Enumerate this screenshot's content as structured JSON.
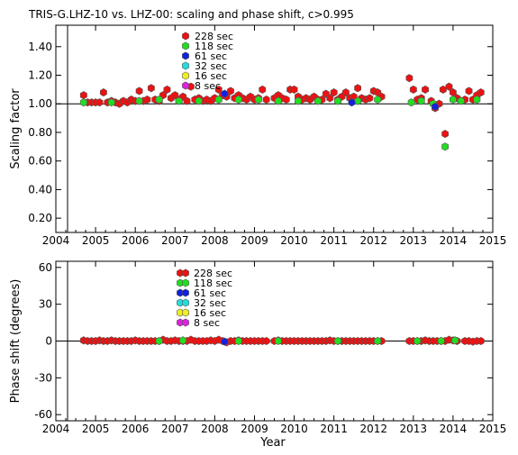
{
  "figure": {
    "title": "TRIS-G.LHZ-10 vs. LHZ-00: scaling and phase shift, c>0.995",
    "xlabel": "Year"
  },
  "legend_items": [
    {
      "label": "228 sec",
      "color": "#ee1111"
    },
    {
      "label": "118 sec",
      "color": "#22dd22"
    },
    {
      "label": "61 sec",
      "color": "#1122dd"
    },
    {
      "label": "32 sec",
      "color": "#22dddd"
    },
    {
      "label": "16 sec",
      "color": "#eeee22"
    },
    {
      "label": "8 sec",
      "color": "#dd22dd"
    }
  ],
  "chart_data": [
    {
      "type": "scatter",
      "ylabel": "Scaling factor",
      "xlim": [
        2004,
        2015
      ],
      "ylim": [
        0.1,
        1.55
      ],
      "xticks": [
        "2004",
        "2005",
        "2006",
        "2007",
        "2008",
        "2009",
        "2010",
        "2011",
        "2012",
        "2013",
        "2014",
        "2015"
      ],
      "yticks": [
        "0.20",
        "0.40",
        "0.60",
        "0.80",
        "1.00",
        "1.20",
        "1.40"
      ],
      "reference_line": 1.0,
      "legend_position": "top-center",
      "series": [
        {
          "name": "228 sec",
          "color": "#ee1111",
          "points": [
            [
              2004.7,
              1.06
            ],
            [
              2004.8,
              1.01
            ],
            [
              2004.9,
              1.01
            ],
            [
              2005.0,
              1.01
            ],
            [
              2005.1,
              1.01
            ],
            [
              2005.2,
              1.08
            ],
            [
              2005.3,
              1.01
            ],
            [
              2005.4,
              1.02
            ],
            [
              2005.5,
              1.01
            ],
            [
              2005.6,
              1.0
            ],
            [
              2005.7,
              1.02
            ],
            [
              2005.8,
              1.01
            ],
            [
              2005.9,
              1.03
            ],
            [
              2006.0,
              1.02
            ],
            [
              2006.1,
              1.09
            ],
            [
              2006.2,
              1.02
            ],
            [
              2006.3,
              1.03
            ],
            [
              2006.4,
              1.11
            ],
            [
              2006.5,
              1.03
            ],
            [
              2006.6,
              1.02
            ],
            [
              2006.7,
              1.06
            ],
            [
              2006.8,
              1.1
            ],
            [
              2006.9,
              1.04
            ],
            [
              2007.0,
              1.06
            ],
            [
              2007.1,
              1.03
            ],
            [
              2007.2,
              1.05
            ],
            [
              2007.3,
              1.02
            ],
            [
              2007.4,
              1.12
            ],
            [
              2007.5,
              1.03
            ],
            [
              2007.6,
              1.04
            ],
            [
              2007.7,
              1.02
            ],
            [
              2007.8,
              1.03
            ],
            [
              2007.9,
              1.02
            ],
            [
              2008.0,
              1.04
            ],
            [
              2008.1,
              1.1
            ],
            [
              2008.2,
              1.06
            ],
            [
              2008.3,
              1.05
            ],
            [
              2008.4,
              1.09
            ],
            [
              2008.5,
              1.04
            ],
            [
              2008.6,
              1.06
            ],
            [
              2008.7,
              1.04
            ],
            [
              2008.8,
              1.03
            ],
            [
              2008.9,
              1.05
            ],
            [
              2009.0,
              1.03
            ],
            [
              2009.1,
              1.04
            ],
            [
              2009.2,
              1.1
            ],
            [
              2009.3,
              1.03
            ],
            [
              2009.5,
              1.04
            ],
            [
              2009.6,
              1.06
            ],
            [
              2009.7,
              1.04
            ],
            [
              2009.8,
              1.03
            ],
            [
              2009.9,
              1.1
            ],
            [
              2010.0,
              1.1
            ],
            [
              2010.1,
              1.05
            ],
            [
              2010.2,
              1.03
            ],
            [
              2010.3,
              1.04
            ],
            [
              2010.4,
              1.03
            ],
            [
              2010.5,
              1.05
            ],
            [
              2010.6,
              1.03
            ],
            [
              2010.7,
              1.03
            ],
            [
              2010.8,
              1.07
            ],
            [
              2010.9,
              1.04
            ],
            [
              2011.0,
              1.08
            ],
            [
              2011.1,
              1.03
            ],
            [
              2011.2,
              1.05
            ],
            [
              2011.3,
              1.08
            ],
            [
              2011.4,
              1.04
            ],
            [
              2011.5,
              1.05
            ],
            [
              2011.6,
              1.11
            ],
            [
              2011.7,
              1.04
            ],
            [
              2011.8,
              1.03
            ],
            [
              2011.9,
              1.04
            ],
            [
              2012.0,
              1.09
            ],
            [
              2012.1,
              1.08
            ],
            [
              2012.2,
              1.05
            ],
            [
              2012.9,
              1.18
            ],
            [
              2013.0,
              1.1
            ],
            [
              2013.1,
              1.03
            ],
            [
              2013.2,
              1.04
            ],
            [
              2013.3,
              1.1
            ],
            [
              2013.45,
              1.02
            ],
            [
              2013.55,
              0.97
            ],
            [
              2013.65,
              1.0
            ],
            [
              2013.75,
              1.1
            ],
            [
              2013.9,
              1.12
            ],
            [
              2014.0,
              1.08
            ],
            [
              2014.1,
              1.04
            ],
            [
              2014.3,
              1.03
            ],
            [
              2014.4,
              1.09
            ],
            [
              2014.5,
              1.03
            ],
            [
              2014.6,
              1.06
            ],
            [
              2014.7,
              1.08
            ],
            [
              2013.8,
              0.79
            ]
          ]
        },
        {
          "name": "118 sec",
          "color": "#22dd22",
          "points": [
            [
              2004.7,
              1.01
            ],
            [
              2005.4,
              1.01
            ],
            [
              2006.1,
              1.02
            ],
            [
              2006.6,
              1.03
            ],
            [
              2007.1,
              1.02
            ],
            [
              2007.6,
              1.02
            ],
            [
              2008.1,
              1.03
            ],
            [
              2008.6,
              1.03
            ],
            [
              2009.1,
              1.03
            ],
            [
              2009.6,
              1.02
            ],
            [
              2010.1,
              1.02
            ],
            [
              2010.6,
              1.02
            ],
            [
              2011.1,
              1.02
            ],
            [
              2011.6,
              1.02
            ],
            [
              2012.1,
              1.03
            ],
            [
              2012.95,
              1.01
            ],
            [
              2013.2,
              1.02
            ],
            [
              2013.5,
              1.0
            ],
            [
              2013.8,
              0.7
            ],
            [
              2014.0,
              1.03
            ],
            [
              2014.2,
              1.02
            ],
            [
              2014.6,
              1.03
            ]
          ]
        },
        {
          "name": "61 sec",
          "color": "#1122dd",
          "points": [
            [
              2008.25,
              1.07
            ],
            [
              2011.45,
              1.01
            ],
            [
              2013.55,
              0.98
            ]
          ]
        }
      ]
    },
    {
      "type": "scatter",
      "ylabel": "Phase shift (degrees)",
      "xlim": [
        2004,
        2015
      ],
      "ylim": [
        -65,
        65
      ],
      "xticks": [
        "2004",
        "2005",
        "2006",
        "2007",
        "2008",
        "2009",
        "2010",
        "2011",
        "2012",
        "2013",
        "2014",
        "2015"
      ],
      "yticks": [
        "-60",
        "-30",
        "0",
        "30",
        "60"
      ],
      "reference_line": 0,
      "legend_position": "top-center",
      "series": [
        {
          "name": "228 sec",
          "color": "#ee1111",
          "points": [
            [
              2004.7,
              0.5
            ],
            [
              2004.8,
              0
            ],
            [
              2004.9,
              0
            ],
            [
              2005.0,
              0
            ],
            [
              2005.1,
              0.5
            ],
            [
              2005.2,
              0
            ],
            [
              2005.3,
              0
            ],
            [
              2005.4,
              0.5
            ],
            [
              2005.5,
              0
            ],
            [
              2005.6,
              0
            ],
            [
              2005.7,
              0
            ],
            [
              2005.8,
              0
            ],
            [
              2005.9,
              0
            ],
            [
              2006.0,
              0.5
            ],
            [
              2006.1,
              0
            ],
            [
              2006.2,
              0
            ],
            [
              2006.3,
              0
            ],
            [
              2006.4,
              0
            ],
            [
              2006.5,
              0
            ],
            [
              2006.6,
              0
            ],
            [
              2006.7,
              1
            ],
            [
              2006.8,
              0
            ],
            [
              2006.9,
              0
            ],
            [
              2007.0,
              0.5
            ],
            [
              2007.1,
              0
            ],
            [
              2007.2,
              0
            ],
            [
              2007.3,
              0
            ],
            [
              2007.4,
              1
            ],
            [
              2007.5,
              0
            ],
            [
              2007.6,
              0
            ],
            [
              2007.7,
              0
            ],
            [
              2007.8,
              0
            ],
            [
              2007.9,
              0.5
            ],
            [
              2008.0,
              0
            ],
            [
              2008.1,
              1
            ],
            [
              2008.2,
              0
            ],
            [
              2008.3,
              -1
            ],
            [
              2008.4,
              0
            ],
            [
              2008.5,
              0
            ],
            [
              2008.6,
              0.5
            ],
            [
              2008.7,
              0
            ],
            [
              2008.8,
              0
            ],
            [
              2008.9,
              0
            ],
            [
              2009.0,
              0
            ],
            [
              2009.1,
              0
            ],
            [
              2009.2,
              0
            ],
            [
              2009.3,
              0
            ],
            [
              2009.5,
              0
            ],
            [
              2009.6,
              0.5
            ],
            [
              2009.7,
              0
            ],
            [
              2009.8,
              0
            ],
            [
              2009.9,
              0
            ],
            [
              2010.0,
              0
            ],
            [
              2010.1,
              0
            ],
            [
              2010.2,
              0
            ],
            [
              2010.3,
              0
            ],
            [
              2010.4,
              0
            ],
            [
              2010.5,
              0
            ],
            [
              2010.6,
              0
            ],
            [
              2010.7,
              0
            ],
            [
              2010.8,
              0
            ],
            [
              2010.9,
              0.5
            ],
            [
              2011.0,
              0
            ],
            [
              2011.1,
              0
            ],
            [
              2011.2,
              0
            ],
            [
              2011.3,
              0
            ],
            [
              2011.4,
              0
            ],
            [
              2011.5,
              0
            ],
            [
              2011.6,
              0
            ],
            [
              2011.7,
              0
            ],
            [
              2011.8,
              0
            ],
            [
              2011.9,
              0
            ],
            [
              2012.0,
              0
            ],
            [
              2012.1,
              0
            ],
            [
              2012.2,
              0
            ],
            [
              2012.9,
              0
            ],
            [
              2013.0,
              0
            ],
            [
              2013.1,
              0
            ],
            [
              2013.2,
              0
            ],
            [
              2013.3,
              0.5
            ],
            [
              2013.4,
              0
            ],
            [
              2013.5,
              0
            ],
            [
              2013.6,
              0
            ],
            [
              2013.7,
              0
            ],
            [
              2013.8,
              0
            ],
            [
              2013.9,
              1
            ],
            [
              2014.0,
              0.5
            ],
            [
              2014.1,
              0
            ],
            [
              2014.3,
              0
            ],
            [
              2014.4,
              0
            ],
            [
              2014.5,
              -0.5
            ],
            [
              2014.6,
              0
            ],
            [
              2014.7,
              0
            ]
          ]
        },
        {
          "name": "118 sec",
          "color": "#22dd22",
          "points": [
            [
              2006.6,
              0
            ],
            [
              2007.2,
              0.5
            ],
            [
              2008.6,
              0
            ],
            [
              2009.6,
              0
            ],
            [
              2011.1,
              0
            ],
            [
              2012.1,
              0
            ],
            [
              2013.1,
              0
            ],
            [
              2013.7,
              0
            ],
            [
              2014.05,
              0.5
            ]
          ]
        },
        {
          "name": "61 sec",
          "color": "#1122dd",
          "points": [
            [
              2008.25,
              -0.5
            ]
          ]
        }
      ]
    }
  ]
}
